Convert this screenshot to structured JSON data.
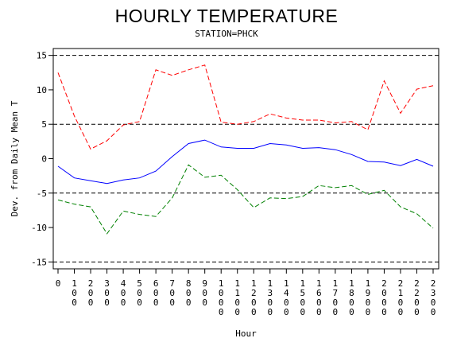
{
  "chart_data": {
    "type": "line",
    "title": "HOURLY TEMPERATURE",
    "subtitle": "STATION=PHCK",
    "xlabel": "Hour",
    "ylabel": "Dev. from Daily Mean T",
    "categories": [
      "0",
      "100",
      "200",
      "300",
      "400",
      "500",
      "600",
      "700",
      "800",
      "900",
      "1000",
      "1100",
      "1200",
      "1300",
      "1400",
      "1500",
      "1600",
      "1700",
      "1800",
      "1900",
      "2000",
      "2100",
      "2200",
      "2300"
    ],
    "yticks": [
      -15,
      -10,
      -5,
      0,
      5,
      10,
      15
    ],
    "ylim": [
      -16,
      16
    ],
    "reference_lines": [
      15,
      5,
      -5,
      -15
    ],
    "series": [
      {
        "color": "#ff0000",
        "dash": "dashed",
        "values": [
          12.5,
          6.2,
          1.4,
          2.6,
          4.9,
          5.4,
          12.9,
          12.1,
          12.9,
          13.6,
          5.3,
          5.0,
          5.4,
          6.5,
          5.9,
          5.6,
          5.6,
          5.2,
          5.4,
          4.2,
          11.3,
          6.6,
          10.1,
          10.6
        ]
      },
      {
        "color": "#0000ff",
        "dash": "solid",
        "values": [
          -1.1,
          -2.8,
          -3.2,
          -3.6,
          -3.1,
          -2.8,
          -1.8,
          0.3,
          2.2,
          2.7,
          1.7,
          1.5,
          1.5,
          2.2,
          2.0,
          1.5,
          1.6,
          1.3,
          0.6,
          -0.4,
          -0.5,
          -1.0,
          -0.1,
          -1.1
        ]
      },
      {
        "color": "#008000",
        "dash": "dashed",
        "values": [
          -6.0,
          -6.6,
          -7.0,
          -10.9,
          -7.6,
          -8.1,
          -8.4,
          -5.7,
          -0.9,
          -2.7,
          -2.4,
          -4.5,
          -7.1,
          -5.7,
          -5.8,
          -5.5,
          -3.9,
          -4.2,
          -3.9,
          -5.2,
          -4.6,
          -7.0,
          -8.0,
          -10.1
        ]
      }
    ]
  }
}
